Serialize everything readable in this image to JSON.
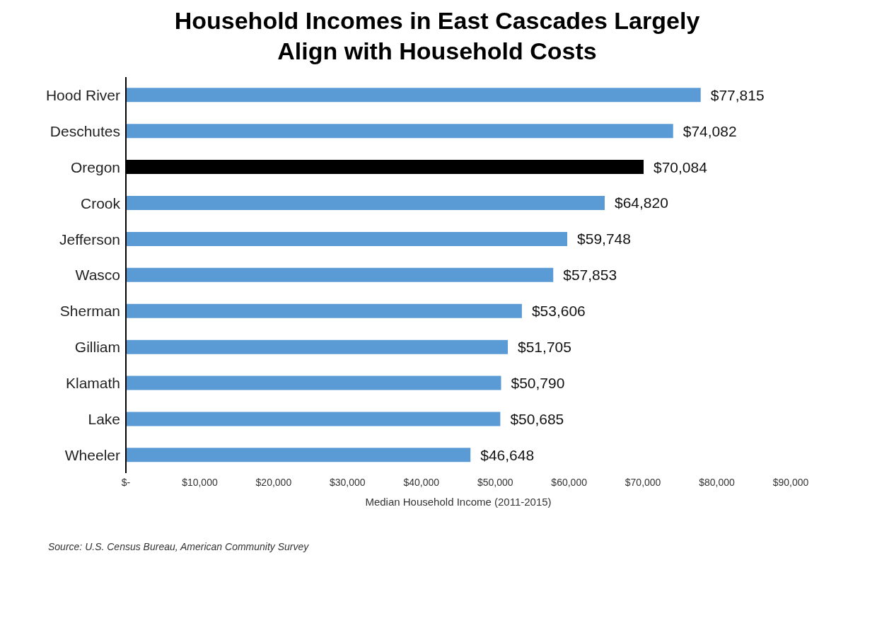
{
  "chart_data": {
    "type": "bar",
    "orientation": "horizontal",
    "title": "Household Incomes in East Cascades Largely Align with Household Costs",
    "categories": [
      "Hood River",
      "Deschutes",
      "Oregon",
      "Crook",
      "Jefferson",
      "Wasco",
      "Sherman",
      "Gilliam",
      "Klamath",
      "Lake",
      "Wheeler"
    ],
    "values": [
      77815,
      74082,
      70084,
      64820,
      59748,
      57853,
      53606,
      51705,
      50790,
      50685,
      46648
    ],
    "colors": [
      "#5b9bd5",
      "#5b9bd5",
      "#000000",
      "#5b9bd5",
      "#5b9bd5",
      "#5b9bd5",
      "#5b9bd5",
      "#5b9bd5",
      "#5b9bd5",
      "#5b9bd5",
      "#5b9bd5"
    ],
    "value_labels": [
      "$77,815",
      "$74,082",
      "$70,084",
      "$64,820",
      "$59,748",
      "$57,853",
      "$53,606",
      "$51,705",
      "$50,790",
      "$50,685",
      "$46,648"
    ],
    "xlabel": "Median Household Income (2011-2015)",
    "xlim": [
      0,
      90000
    ],
    "xticks": [
      {
        "value": 0,
        "label": "$-"
      },
      {
        "value": 10000,
        "label": "$10,000"
      },
      {
        "value": 20000,
        "label": "$20,000"
      },
      {
        "value": 30000,
        "label": "$30,000"
      },
      {
        "value": 40000,
        "label": "$40,000"
      },
      {
        "value": 50000,
        "label": "$50,000"
      },
      {
        "value": 60000,
        "label": "$60,000"
      },
      {
        "value": 70000,
        "label": "$70,000"
      },
      {
        "value": 80000,
        "label": "$80,000"
      },
      {
        "value": 90000,
        "label": "$90,000"
      }
    ],
    "grid": false,
    "legend": false,
    "annotations": [
      "Source: U.S. Census Bureau, American Community Survey"
    ]
  }
}
